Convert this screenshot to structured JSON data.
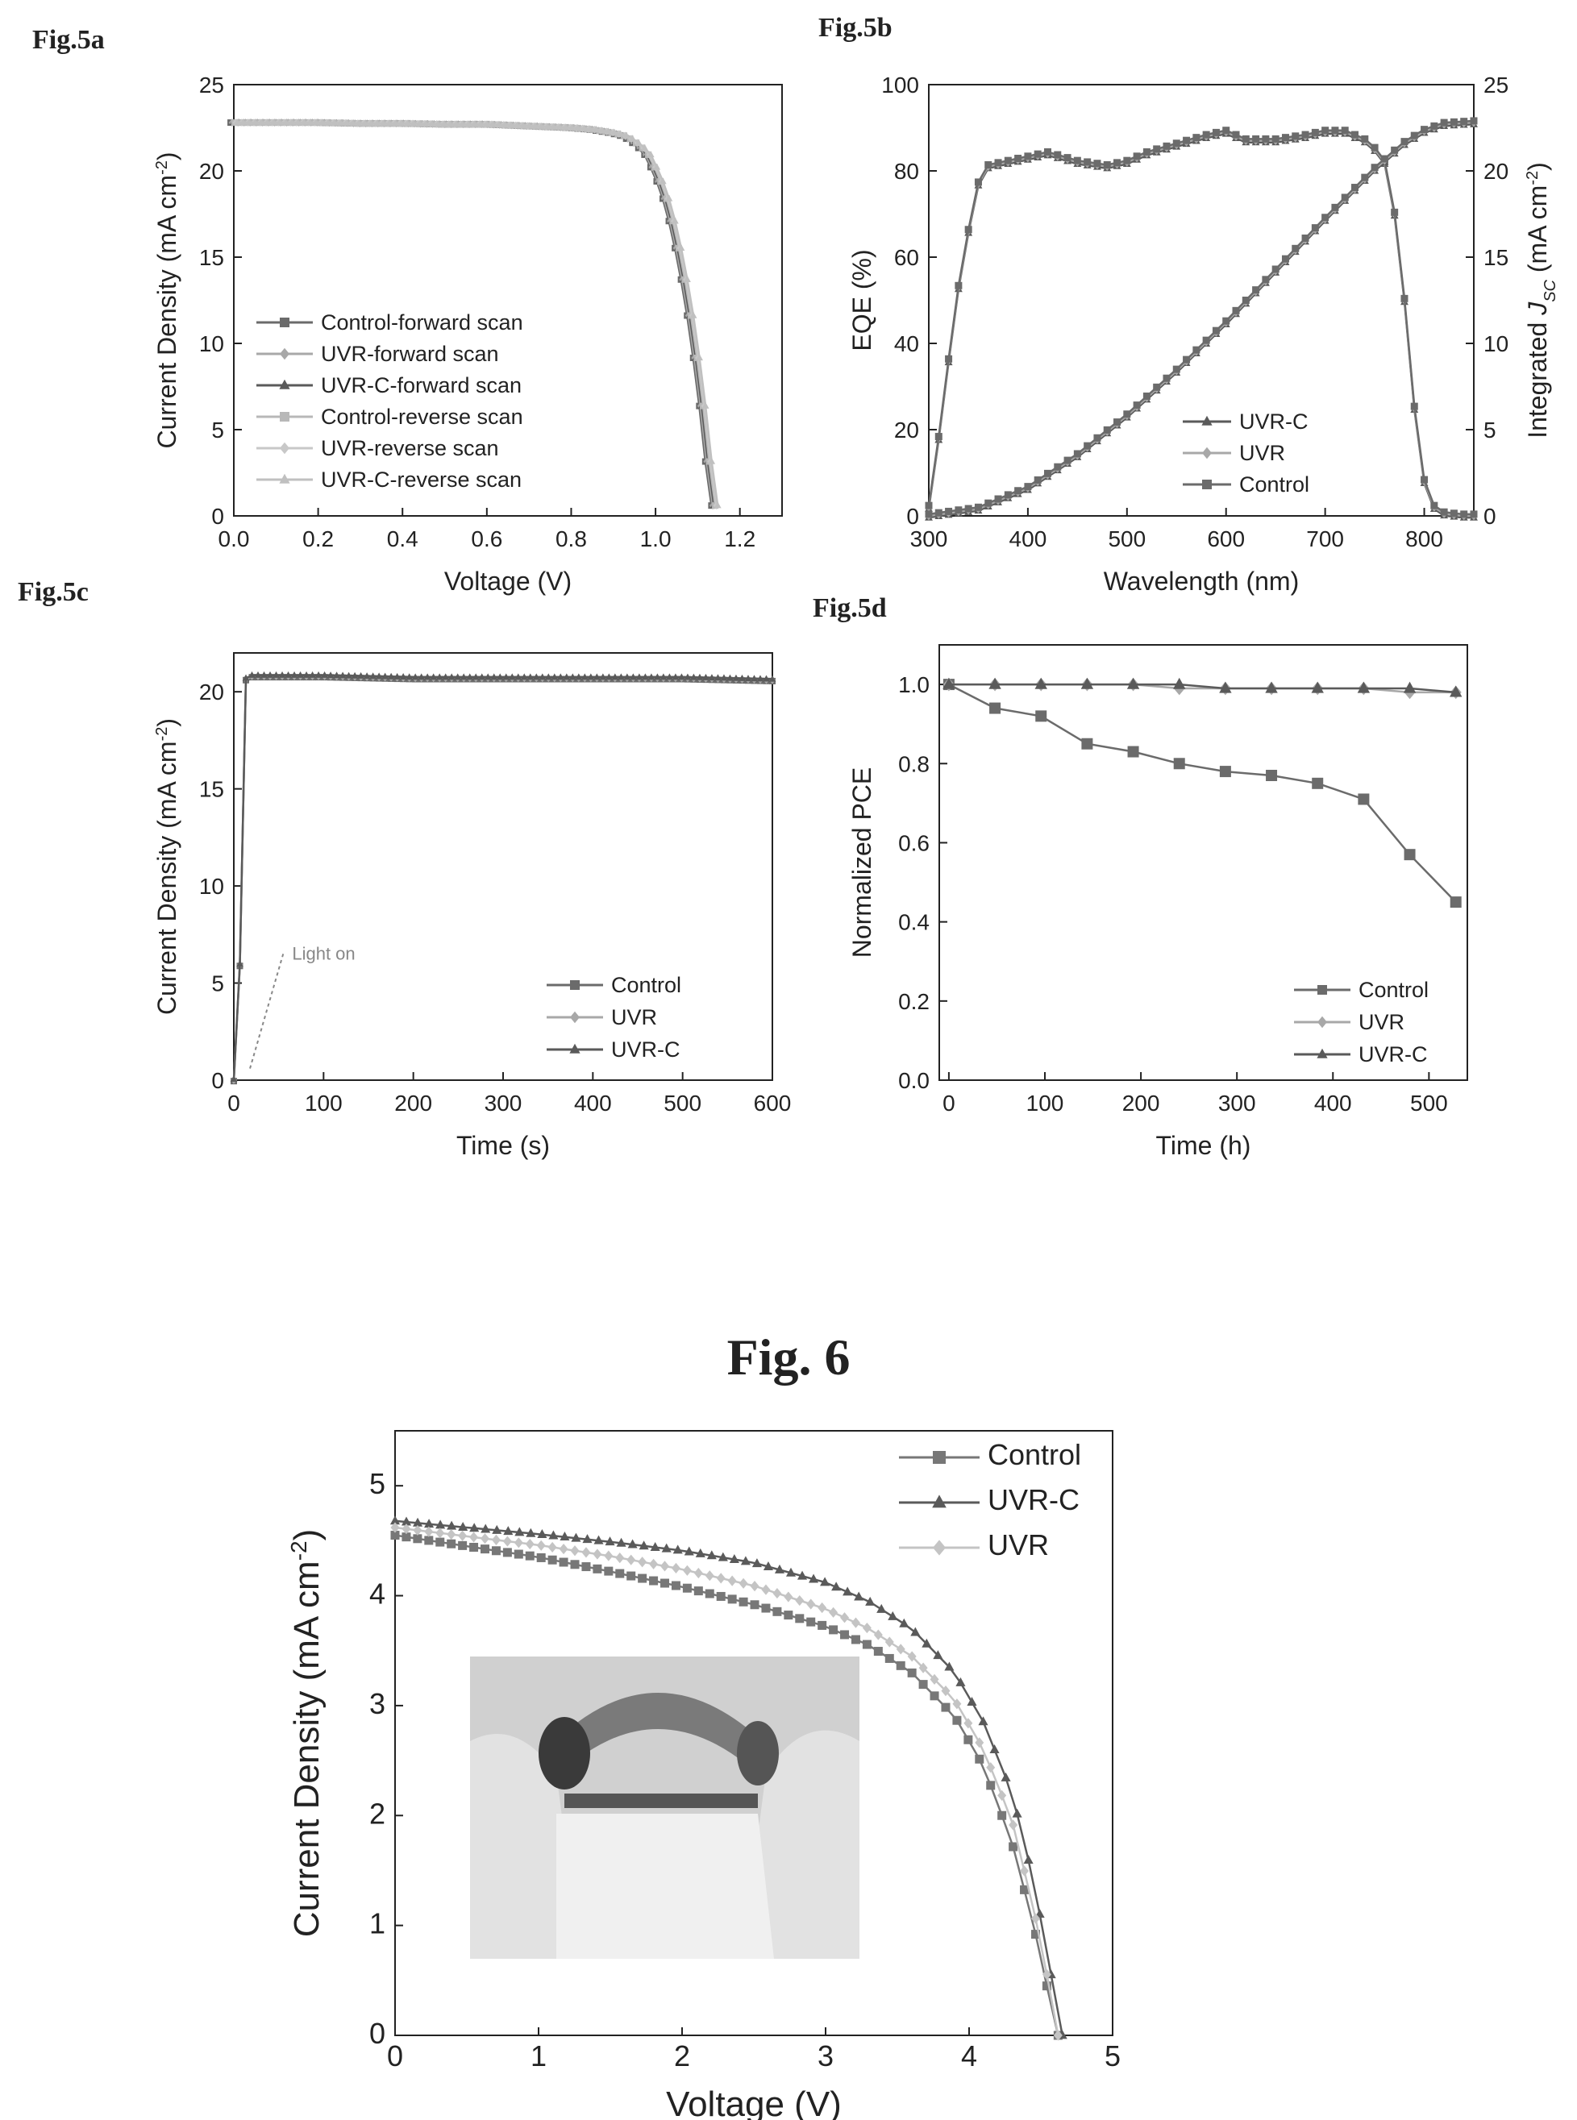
{
  "figures": {
    "fig5a_label": "Fig.5a",
    "fig5b_label": "Fig.5b",
    "fig5c_label": "Fig.5c",
    "fig5d_label": "Fig.5d",
    "fig6_title": "Fig. 6"
  },
  "inset_photo": {
    "content": "flexible device bent between fingers",
    "colors": {
      "bg": "#c8c8c8",
      "dark": "#3a3a3a"
    }
  },
  "chart_data": [
    {
      "id": "fig5a",
      "type": "line",
      "xlabel": "Voltage (V)",
      "ylabel_main": "Current Density (mA cm",
      "ylabel_sup": "-2",
      "ylabel_end": ")",
      "xlim": [
        0.0,
        1.3
      ],
      "ylim": [
        0,
        25
      ],
      "xticks": [
        "0.0",
        "0.2",
        "0.4",
        "0.6",
        "0.8",
        "1.0",
        "1.2"
      ],
      "yticks": [
        "0",
        "5",
        "10",
        "15",
        "20",
        "25"
      ],
      "legend_position": "left-middle",
      "series": [
        {
          "name": "Control-forward scan",
          "color": "#6b6b6b",
          "marker": "square"
        },
        {
          "name": "UVR-forward scan",
          "color": "#a8a8a8",
          "marker": "diamond"
        },
        {
          "name": "UVR-C-forward scan",
          "color": "#5a5a5a",
          "marker": "triangle"
        },
        {
          "name": "Control-reverse scan",
          "color": "#b8b8b8",
          "marker": "square"
        },
        {
          "name": "UVR-reverse scan",
          "color": "#c8c8c8",
          "marker": "diamond"
        },
        {
          "name": "UVR-C-reverse scan",
          "color": "#c0c0c0",
          "marker": "triangle"
        }
      ],
      "curve": {
        "x": [
          0.0,
          0.1,
          0.2,
          0.3,
          0.4,
          0.5,
          0.6,
          0.7,
          0.8,
          0.85,
          0.9,
          0.93,
          0.96,
          0.98,
          1.0,
          1.02,
          1.04,
          1.06,
          1.08,
          1.1,
          1.12,
          1.13,
          1.14
        ],
        "y": [
          22.8,
          22.8,
          22.8,
          22.75,
          22.75,
          22.7,
          22.7,
          22.6,
          22.5,
          22.4,
          22.2,
          22.0,
          21.5,
          21.0,
          20.0,
          18.8,
          17.0,
          14.8,
          12.0,
          8.6,
          4.6,
          2.0,
          0.6
        ]
      }
    },
    {
      "id": "fig5b",
      "type": "line",
      "xlabel": "Wavelength (nm)",
      "ylabel_left": "EQE (%)",
      "ylabel_right_pre": "Integrated ",
      "ylabel_right_j": "J",
      "ylabel_right_sub": "SC",
      "ylabel_right_mid": " (mA cm",
      "ylabel_right_sup": "-2",
      "ylabel_right_end": ")",
      "xlim": [
        300,
        850
      ],
      "ylim_left": [
        0,
        100
      ],
      "ylim_right": [
        0,
        25
      ],
      "xticks": [
        "300",
        "400",
        "500",
        "600",
        "700",
        "800"
      ],
      "yticks_left": [
        "0",
        "20",
        "40",
        "60",
        "80",
        "100"
      ],
      "yticks_right": [
        "0",
        "5",
        "10",
        "15",
        "20",
        "25"
      ],
      "legend_position": "bottom-right",
      "series": [
        {
          "name": "UVR-C",
          "color": "#5a5a5a",
          "marker": "triangle"
        },
        {
          "name": "UVR",
          "color": "#a8a8a8",
          "marker": "diamond"
        },
        {
          "name": "Control",
          "color": "#6b6b6b",
          "marker": "square"
        }
      ],
      "eqe": {
        "x": [
          300,
          310,
          320,
          330,
          340,
          350,
          360,
          380,
          400,
          420,
          450,
          480,
          500,
          520,
          550,
          580,
          600,
          620,
          650,
          680,
          700,
          720,
          740,
          750,
          760,
          770,
          780,
          790,
          800,
          810,
          820,
          830,
          840,
          850
        ],
        "y": [
          2,
          18,
          36,
          53,
          66,
          77,
          81,
          82,
          83,
          84,
          82,
          81,
          82,
          84,
          86,
          88,
          89,
          87,
          87,
          88,
          89,
          89,
          87,
          85,
          82,
          70,
          50,
          25,
          8,
          2,
          0.5,
          0.2,
          0,
          0
        ]
      },
      "jsc": {
        "x": [
          300,
          350,
          400,
          450,
          500,
          550,
          600,
          650,
          700,
          750,
          780,
          800,
          820,
          850
        ],
        "y": [
          0,
          0.4,
          1.6,
          3.5,
          5.8,
          8.4,
          11.2,
          14.2,
          17.2,
          20.1,
          21.6,
          22.3,
          22.7,
          22.8
        ]
      }
    },
    {
      "id": "fig5c",
      "type": "line",
      "xlabel": "Time (s)",
      "ylabel_main": "Current Density (mA cm",
      "ylabel_sup": "-2",
      "ylabel_end": ")",
      "xlim": [
        0,
        600
      ],
      "ylim": [
        0,
        22
      ],
      "xticks": [
        "0",
        "100",
        "200",
        "300",
        "400",
        "500",
        "600"
      ],
      "yticks": [
        "0",
        "5",
        "10",
        "15",
        "20"
      ],
      "annotation": "Light on",
      "legend_position": "bottom-right",
      "series": [
        {
          "name": "Control",
          "color": "#6b6b6b",
          "marker": "square"
        },
        {
          "name": "UVR",
          "color": "#a8a8a8",
          "marker": "diamond"
        },
        {
          "name": "UVR-C",
          "color": "#5a5a5a",
          "marker": "triangle"
        }
      ],
      "curve": {
        "x": [
          0,
          5,
          8,
          10,
          12,
          15,
          20,
          50,
          100,
          200,
          300,
          400,
          500,
          600
        ],
        "y": [
          0,
          0.3,
          10,
          19,
          20.5,
          20.8,
          20.8,
          20.8,
          20.8,
          20.7,
          20.7,
          20.7,
          20.7,
          20.6
        ]
      }
    },
    {
      "id": "fig5d",
      "type": "line",
      "xlabel": "Time (h)",
      "ylabel": "Normalized PCE",
      "xlim": [
        -10,
        540
      ],
      "ylim": [
        0.0,
        1.1
      ],
      "xticks": [
        "0",
        "100",
        "200",
        "300",
        "400",
        "500"
      ],
      "yticks": [
        "0.0",
        "0.2",
        "0.4",
        "0.6",
        "0.8",
        "1.0"
      ],
      "legend_position": "bottom-right",
      "series": [
        {
          "name": "Control",
          "color": "#6b6b6b",
          "marker": "square",
          "x": [
            0,
            48,
            96,
            144,
            192,
            240,
            288,
            336,
            384,
            432,
            480,
            528
          ],
          "y": [
            1.0,
            0.94,
            0.92,
            0.85,
            0.83,
            0.8,
            0.78,
            0.77,
            0.75,
            0.71,
            0.57,
            0.45
          ]
        },
        {
          "name": "UVR",
          "color": "#a8a8a8",
          "marker": "diamond",
          "x": [
            0,
            48,
            96,
            144,
            192,
            240,
            288,
            336,
            384,
            432,
            480,
            528
          ],
          "y": [
            1.0,
            1.0,
            1.0,
            1.0,
            1.0,
            0.99,
            0.99,
            0.99,
            0.99,
            0.99,
            0.98,
            0.98
          ]
        },
        {
          "name": "UVR-C",
          "color": "#5a5a5a",
          "marker": "triangle",
          "x": [
            0,
            48,
            96,
            144,
            192,
            240,
            288,
            336,
            384,
            432,
            480,
            528
          ],
          "y": [
            1.0,
            1.0,
            1.0,
            1.0,
            1.0,
            1.0,
            0.99,
            0.99,
            0.99,
            0.99,
            0.99,
            0.98
          ]
        }
      ]
    },
    {
      "id": "fig6",
      "type": "line",
      "xlabel": "Voltage (V)",
      "ylabel_main": "Current Density (mA cm",
      "ylabel_sup": "-2",
      "ylabel_end": ")",
      "xlim": [
        0,
        5
      ],
      "ylim": [
        0,
        5.5
      ],
      "xticks": [
        "0",
        "1",
        "2",
        "3",
        "4",
        "5"
      ],
      "yticks": [
        "0",
        "1",
        "2",
        "3",
        "4",
        "5"
      ],
      "legend_position": "top-right",
      "series": [
        {
          "name": "Control",
          "color": "#777777",
          "marker": "square",
          "x": [
            0,
            0.5,
            1,
            1.5,
            2,
            2.5,
            3,
            3.3,
            3.6,
            3.9,
            4.1,
            4.3,
            4.45,
            4.55,
            4.62
          ],
          "y": [
            4.55,
            4.45,
            4.35,
            4.22,
            4.08,
            3.92,
            3.72,
            3.55,
            3.3,
            2.9,
            2.45,
            1.75,
            1.0,
            0.4,
            0
          ]
        },
        {
          "name": "UVR-C",
          "color": "#5a5a5a",
          "marker": "triangle",
          "x": [
            0,
            0.5,
            1,
            1.5,
            2,
            2.5,
            3,
            3.3,
            3.6,
            3.9,
            4.1,
            4.3,
            4.45,
            4.55,
            4.65
          ],
          "y": [
            4.68,
            4.62,
            4.56,
            4.49,
            4.41,
            4.3,
            4.12,
            3.95,
            3.7,
            3.3,
            2.85,
            2.2,
            1.4,
            0.7,
            0
          ]
        },
        {
          "name": "UVR",
          "color": "#c4c4c4",
          "marker": "diamond",
          "x": [
            0,
            0.5,
            1,
            1.5,
            2,
            2.5,
            3,
            3.3,
            3.6,
            3.9,
            4.1,
            4.3,
            4.45,
            4.55,
            4.62
          ],
          "y": [
            4.62,
            4.54,
            4.46,
            4.36,
            4.24,
            4.09,
            3.88,
            3.7,
            3.45,
            3.05,
            2.6,
            1.95,
            1.15,
            0.5,
            0
          ]
        }
      ]
    }
  ]
}
